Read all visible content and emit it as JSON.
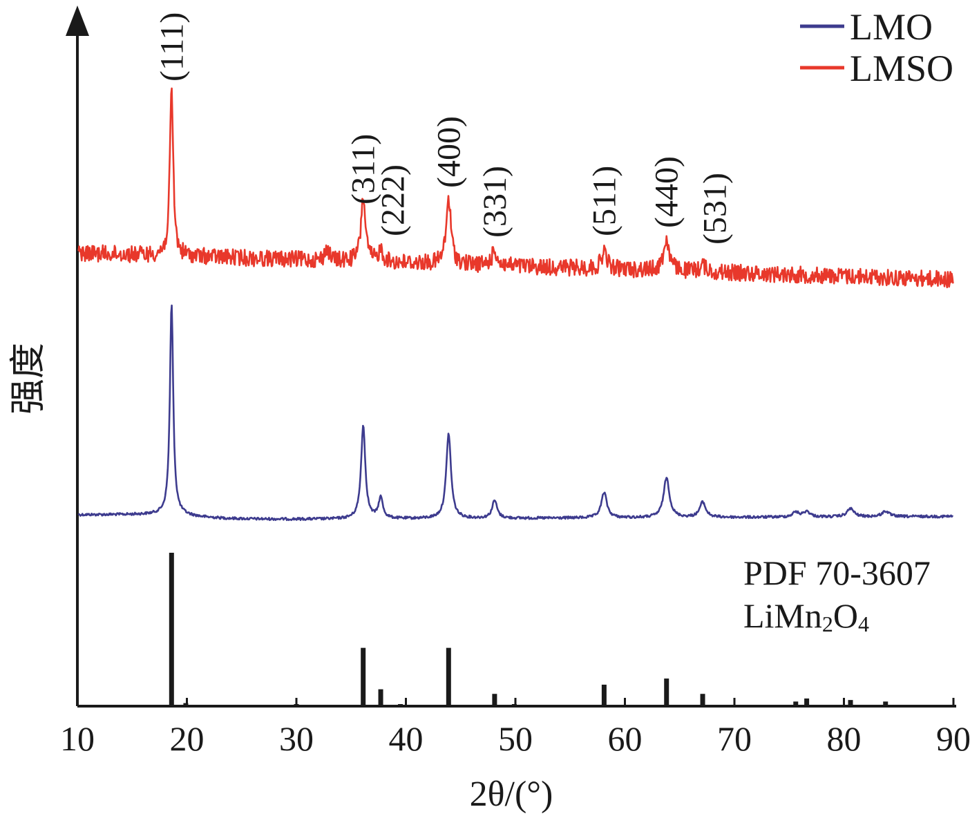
{
  "chart_data": {
    "type": "line",
    "xlabel": "2θ/(°)",
    "ylabel": "强度",
    "xlim": [
      10,
      90
    ],
    "x_ticks": [
      "10",
      "20",
      "30",
      "40",
      "50",
      "60",
      "70",
      "80",
      "90"
    ],
    "y_axis_ticks": false,
    "legend": {
      "placement": "top-right",
      "entries": [
        "LMO",
        "LMSO"
      ]
    },
    "reference": {
      "label_line1": "PDF 70-3607",
      "label_line2_parts": [
        "LiMn",
        "2",
        "O",
        "4"
      ],
      "peaks": [
        {
          "x": 18.6,
          "rel": 100
        },
        {
          "x": 19.9,
          "rel": 2
        },
        {
          "x": 30.0,
          "rel": 1
        },
        {
          "x": 36.1,
          "rel": 38
        },
        {
          "x": 37.7,
          "rel": 11
        },
        {
          "x": 39.5,
          "rel": 1
        },
        {
          "x": 43.9,
          "rel": 38
        },
        {
          "x": 48.1,
          "rel": 8
        },
        {
          "x": 49.9,
          "rel": 1
        },
        {
          "x": 58.1,
          "rel": 14
        },
        {
          "x": 63.8,
          "rel": 18
        },
        {
          "x": 67.1,
          "rel": 8
        },
        {
          "x": 75.6,
          "rel": 3
        },
        {
          "x": 76.6,
          "rel": 5
        },
        {
          "x": 80.6,
          "rel": 4
        },
        {
          "x": 83.8,
          "rel": 3
        }
      ]
    },
    "series": [
      {
        "name": "LMO",
        "color": "#3d3b8e",
        "profile": "clean",
        "peaks": [
          {
            "x": 18.6,
            "h": 305
          },
          {
            "x": 36.1,
            "h": 135
          },
          {
            "x": 37.7,
            "h": 30
          },
          {
            "x": 43.9,
            "h": 123
          },
          {
            "x": 48.1,
            "h": 26
          },
          {
            "x": 58.1,
            "h": 37
          },
          {
            "x": 63.8,
            "h": 58
          },
          {
            "x": 67.1,
            "h": 22
          },
          {
            "x": 75.6,
            "h": 7
          },
          {
            "x": 76.6,
            "h": 8
          },
          {
            "x": 80.6,
            "h": 12
          },
          {
            "x": 83.8,
            "h": 8
          }
        ]
      },
      {
        "name": "LMSO",
        "color": "#e8382b",
        "profile": "noisy",
        "peaks": [
          {
            "x": 18.6,
            "h": 240
          },
          {
            "x": 32.8,
            "h": 18
          },
          {
            "x": 36.1,
            "h": 95
          },
          {
            "x": 37.7,
            "h": 18
          },
          {
            "x": 43.9,
            "h": 95
          },
          {
            "x": 48.1,
            "h": 22
          },
          {
            "x": 58.1,
            "h": 25
          },
          {
            "x": 63.8,
            "h": 45
          },
          {
            "x": 67.1,
            "h": 10
          }
        ]
      }
    ],
    "peak_labels": [
      {
        "x": 18.6,
        "text": "(111)"
      },
      {
        "x": 36.1,
        "text": "(311)"
      },
      {
        "x": 38.8,
        "text": "(222)"
      },
      {
        "x": 43.9,
        "text": "(400)"
      },
      {
        "x": 48.1,
        "text": "(331)"
      },
      {
        "x": 58.1,
        "text": "(511)"
      },
      {
        "x": 63.8,
        "text": "(440)"
      },
      {
        "x": 68.2,
        "text": "(531)"
      }
    ]
  }
}
